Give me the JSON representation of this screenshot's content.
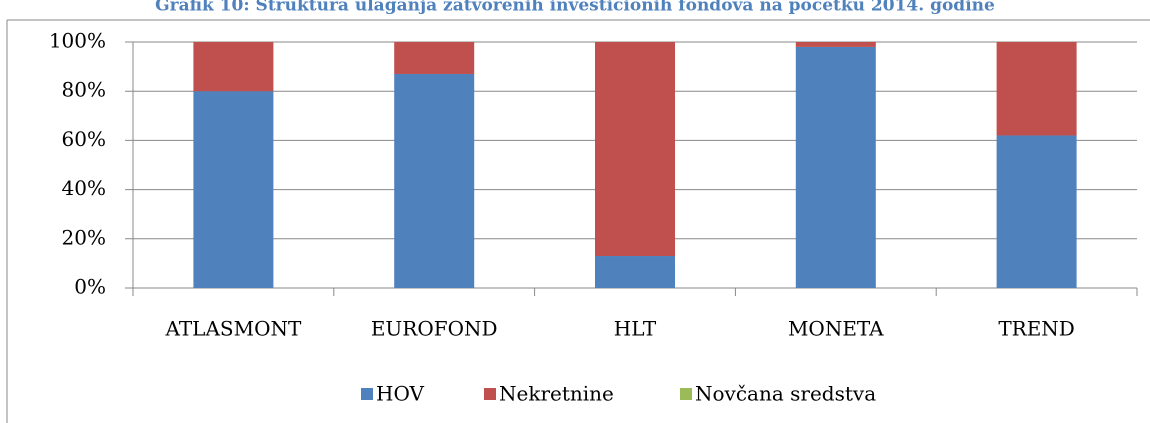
{
  "chart_data": {
    "type": "stacked_bar",
    "title": "Grafik 10: Struktura ulaganja zatvorenih investicionih fondova na početku 2014. godine",
    "categories": [
      "ATLASMONT",
      "EUROFOND",
      "HLT",
      "MONETA",
      "TREND"
    ],
    "series": [
      {
        "name": "HOV",
        "color": "#4f81bd",
        "values": [
          80,
          87,
          13,
          98,
          62
        ]
      },
      {
        "name": "Nekretnine",
        "color": "#c0504d",
        "values": [
          20,
          13,
          87,
          2,
          38
        ]
      },
      {
        "name": "Novčana sredstva",
        "color": "#9bbb59",
        "values": [
          0,
          0,
          0,
          0,
          0
        ]
      }
    ],
    "ylim": [
      0,
      100
    ],
    "yticks": [
      {
        "value": 0,
        "label": "0%"
      },
      {
        "value": 20,
        "label": "20%"
      },
      {
        "value": 40,
        "label": "40%"
      },
      {
        "value": 60,
        "label": "60%"
      },
      {
        "value": 80,
        "label": "80%"
      },
      {
        "value": 100,
        "label": "100%"
      }
    ],
    "grid": true,
    "legend": "bottom"
  }
}
